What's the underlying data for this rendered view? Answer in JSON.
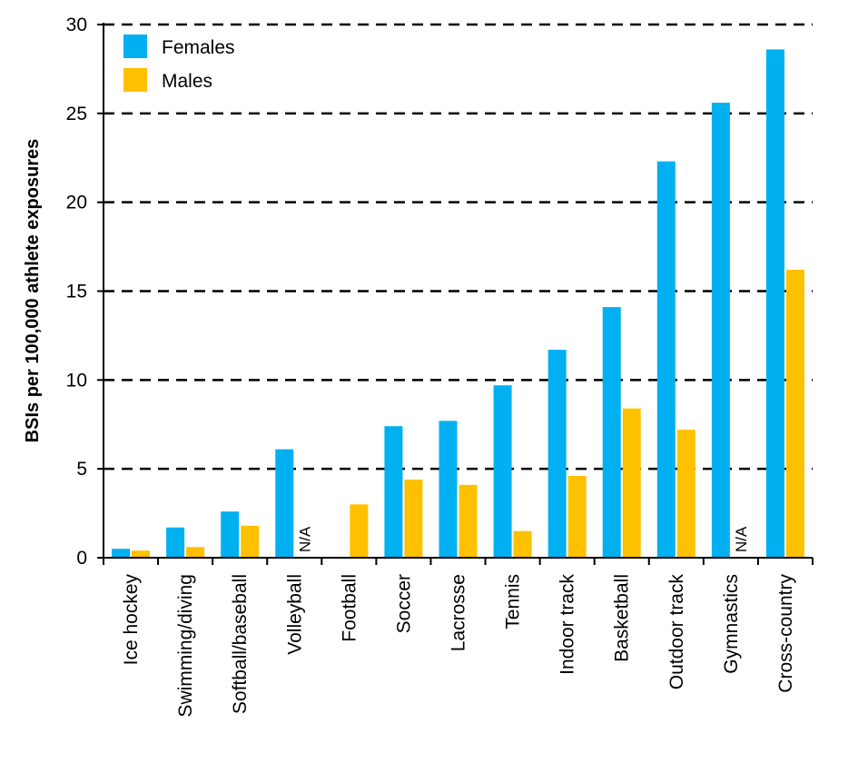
{
  "chart_data": {
    "type": "bar",
    "ylabel": "BSIs per 100,000 athlete exposures",
    "ylim": [
      0,
      30
    ],
    "yticks": [
      0,
      5,
      10,
      15,
      20,
      25,
      30
    ],
    "grid": "dashed horizontal",
    "legend_position": "top-left",
    "categories": [
      "Ice hockey",
      "Swimming/diving",
      "Softball/baseball",
      "Volleyball",
      "Football",
      "Soccer",
      "Lacrosse",
      "Tennis",
      "Indoor track",
      "Basketball",
      "Outdoor track",
      "Gymnastics",
      "Cross-country"
    ],
    "series": [
      {
        "name": "Females",
        "color": "#00b0f0",
        "values": [
          0.5,
          1.7,
          2.6,
          6.1,
          null,
          7.4,
          7.7,
          9.7,
          11.7,
          14.1,
          22.3,
          25.6,
          28.6
        ]
      },
      {
        "name": "Males",
        "color": "#ffc000",
        "values": [
          0.4,
          0.6,
          1.8,
          null,
          3.0,
          4.4,
          4.1,
          1.5,
          4.6,
          8.4,
          7.2,
          null,
          16.2
        ]
      }
    ],
    "annotations": [
      {
        "category": "Volleyball",
        "series": "Males",
        "text": "N/A"
      },
      {
        "category": "Gymnastics",
        "series": "Males",
        "text": "N/A"
      }
    ]
  }
}
